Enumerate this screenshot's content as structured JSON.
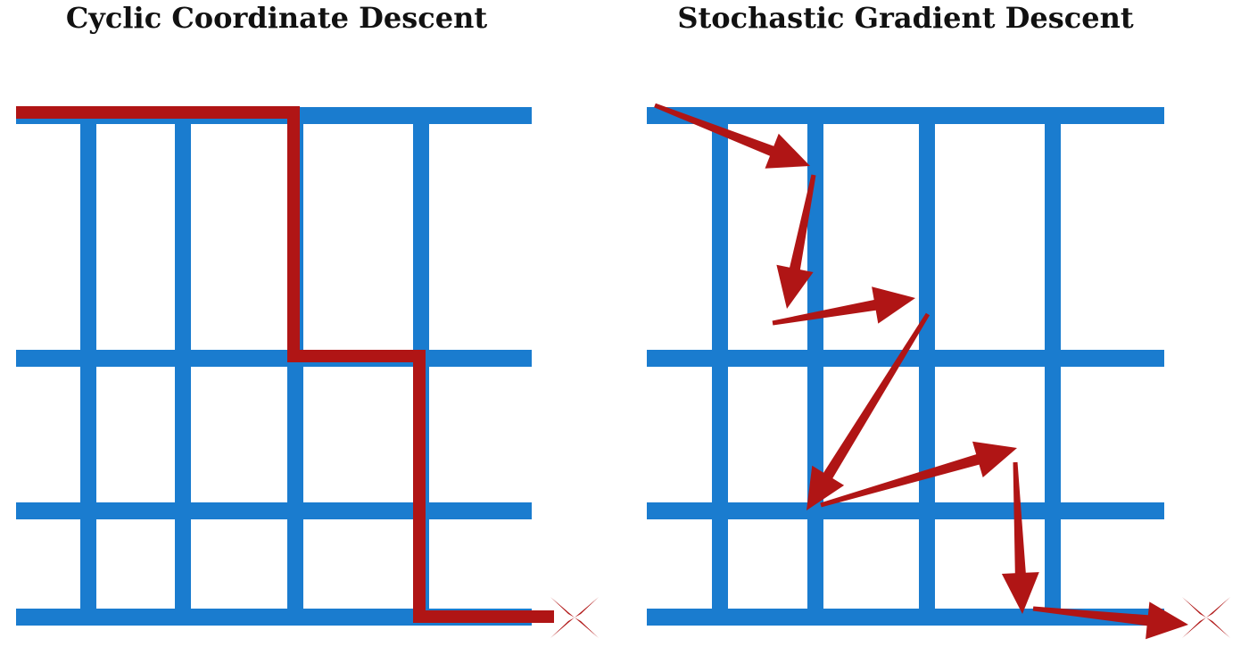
{
  "panels": {
    "left": {
      "title": "Cyclic Coordinate Descent"
    },
    "right": {
      "title": "Stochastic Gradient Descent"
    }
  },
  "colors": {
    "grid": "#1a7ccf",
    "path": "#b01515",
    "background": "#ffffff",
    "title": "#111111"
  },
  "icons": {
    "goal": "cross-star-icon"
  }
}
